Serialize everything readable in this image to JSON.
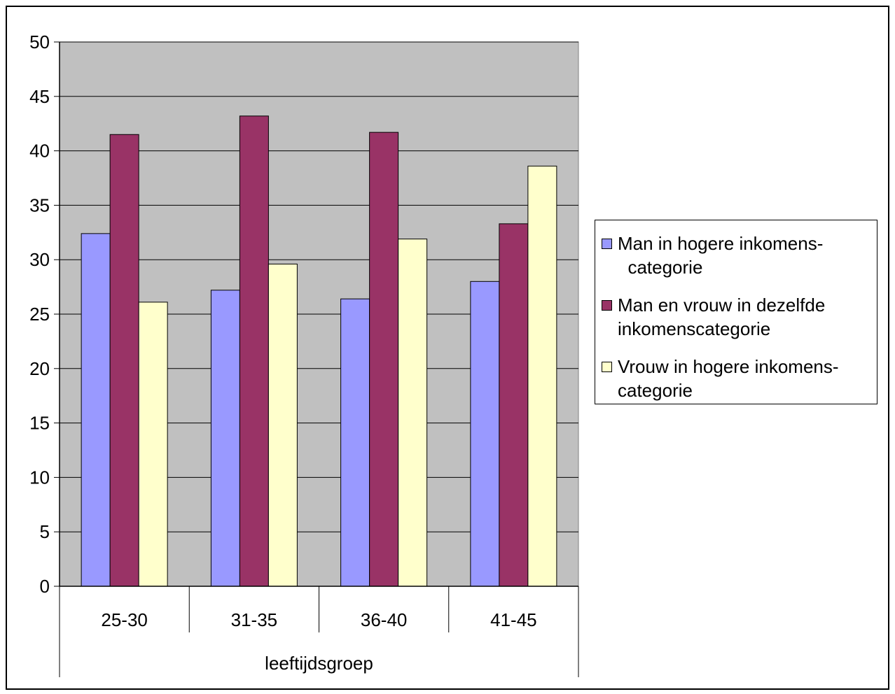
{
  "chart_data": {
    "type": "bar",
    "title": "",
    "xlabel": "leeftijdsgroep",
    "ylabel": "",
    "categories": [
      "25-30",
      "31-35",
      "36-40",
      "41-45"
    ],
    "ylim": [
      0,
      50
    ],
    "yticks": [
      "0",
      "5",
      "10",
      "15",
      "20",
      "25",
      "30",
      "35",
      "40",
      "45",
      "50"
    ],
    "grid": true,
    "legend_position": "right",
    "plot_background": "#c0c0c0",
    "series": [
      {
        "name": "Man in hogere inkomens- categorie",
        "color": "#9999ff",
        "values": [
          32.4,
          27.2,
          26.4,
          28.0
        ]
      },
      {
        "name": "Man en vrouw in dezelfde inkomenscategorie",
        "color": "#993366",
        "values": [
          41.5,
          43.2,
          41.7,
          33.3
        ]
      },
      {
        "name": "Vrouw in hogere inkomens- categorie",
        "color": "#ffffcc",
        "values": [
          26.1,
          29.6,
          31.9,
          38.6
        ]
      }
    ]
  },
  "legend": {
    "items": [
      {
        "line1": "Man in hogere inkomens-",
        "line2": "  categorie",
        "color": "#9999ff"
      },
      {
        "line1": "Man en vrouw in dezelfde",
        "line2": "inkomenscategorie",
        "color": "#993366"
      },
      {
        "line1": "Vrouw in hogere inkomens-",
        "line2": "categorie",
        "color": "#ffffcc"
      }
    ]
  }
}
